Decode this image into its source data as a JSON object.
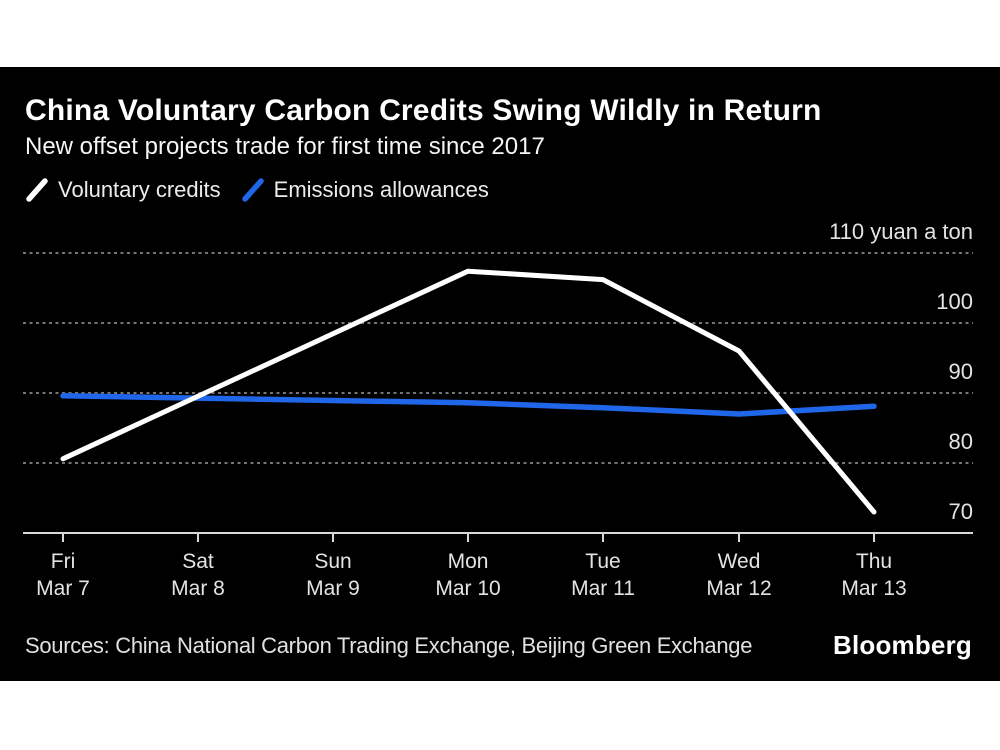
{
  "header": {
    "title": "China Voluntary Carbon Credits Swing Wildly in Return",
    "subtitle": "New offset projects trade for first time since 2017"
  },
  "legend": [
    {
      "label": "Voluntary credits",
      "color": "#ffffff"
    },
    {
      "label": "Emissions allowances",
      "color": "#1f66e8"
    }
  ],
  "footer": {
    "sources": "Sources: China National Carbon Trading Exchange, Beijing Green Exchange",
    "logo": "Bloomberg"
  },
  "colors": {
    "background": "#000000",
    "page_margin": "#ffffff",
    "gridline": "#757575",
    "axis": "#d9d9d9",
    "tick_label": "#e3e3e3",
    "voluntary_credits": "#ffffff",
    "emissions_allowances": "#1f66e8"
  },
  "chart_data": {
    "type": "line",
    "title": "China Voluntary Carbon Credits Swing Wildly in Return",
    "subtitle": "New offset projects trade for first time since 2017",
    "unit_label": "110 yuan a ton",
    "categories": [
      {
        "day": "Fri",
        "date": "Mar 7"
      },
      {
        "day": "Sat",
        "date": "Mar 8"
      },
      {
        "day": "Sun",
        "date": "Mar 9"
      },
      {
        "day": "Mon",
        "date": "Mar 10"
      },
      {
        "day": "Tue",
        "date": "Mar 11"
      },
      {
        "day": "Wed",
        "date": "Mar 12"
      },
      {
        "day": "Thu",
        "date": "Mar 13"
      }
    ],
    "series": [
      {
        "name": "Voluntary credits",
        "color": "#ffffff",
        "stroke_width": 5,
        "values": [
          80.6,
          null,
          null,
          107.4,
          106.2,
          96.0,
          73.0
        ]
      },
      {
        "name": "Emissions allowances",
        "color": "#1f66e8",
        "stroke_width": 5.5,
        "values": [
          89.6,
          null,
          null,
          88.6,
          87.9,
          87.0,
          88.1
        ]
      }
    ],
    "yticks": [
      110,
      100,
      90,
      80,
      70
    ],
    "ytick_labels": [
      "110 yuan a ton",
      "100",
      "90",
      "80",
      "70"
    ],
    "ylim": [
      70,
      110
    ],
    "grid": "horizontal dotted",
    "legend_position": "top-left",
    "note_weekend_gap": "Sat and Sun have no trades; lines connect Fri to Mon directly"
  }
}
